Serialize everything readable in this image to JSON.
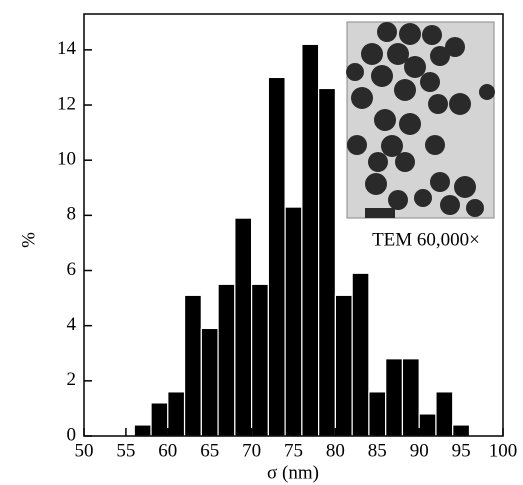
{
  "chart_data": {
    "type": "histogram",
    "x_label": "σ (nm)",
    "y_label": "%",
    "inset_label": "TEM 60,000×",
    "bins": [
      56,
      58,
      60,
      62,
      64,
      66,
      68,
      70,
      72,
      74,
      76,
      78,
      80,
      82,
      84,
      86,
      88,
      90,
      92,
      94,
      96
    ],
    "values": [
      0.4,
      1.2,
      1.6,
      5.1,
      3.9,
      5.5,
      7.9,
      5.5,
      13.0,
      8.3,
      14.2,
      12.6,
      5.1,
      5.9,
      1.6,
      2.8,
      2.8,
      0.8,
      1.6,
      0.4
    ],
    "color": "#000000",
    "xlim": [
      50,
      100
    ],
    "xticks": [
      50,
      55,
      60,
      65,
      70,
      75,
      80,
      85,
      90,
      95,
      100
    ],
    "ylim": [
      0,
      15.3
    ],
    "yticks": [
      0,
      2,
      4,
      6,
      8,
      10,
      12,
      14
    ],
    "grid": false
  }
}
